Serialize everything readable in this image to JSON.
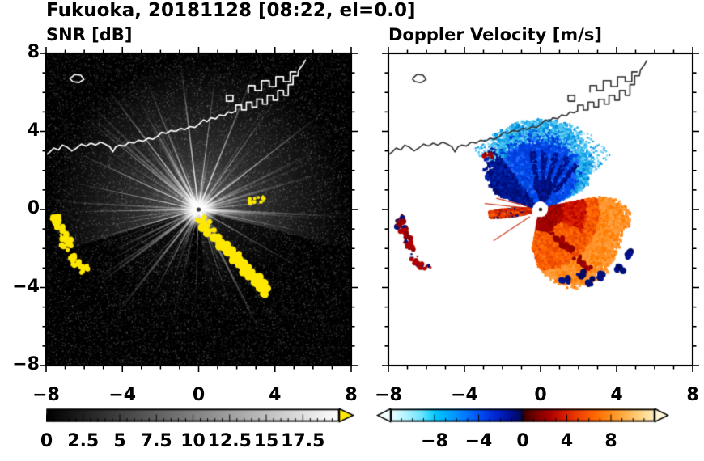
{
  "title": "Fukuoka, 20181128 [08:22, el=0.0]",
  "panels": {
    "snr": {
      "title": "SNR [dB]"
    },
    "doppler": {
      "title": "Doppler Velocity [m/s]"
    }
  },
  "axes": {
    "xlim": [
      -8,
      8
    ],
    "ylim": [
      -8,
      8
    ],
    "major_ticks": [
      -8,
      -4,
      0,
      4,
      8
    ],
    "minor_step": 1,
    "xtick_labels": [
      "−8",
      "−4",
      "0",
      "4",
      "8"
    ],
    "ytick_labels": [
      "8",
      "4",
      "0",
      "−4",
      "−8"
    ]
  },
  "colorbars": {
    "snr": {
      "range": [
        0,
        20
      ],
      "tick_values": [
        0,
        2.5,
        5,
        7.5,
        10,
        12.5,
        15,
        17.5
      ],
      "tick_labels": [
        "0",
        "2.5",
        "5",
        "7.5",
        "10",
        "12.5",
        "15",
        "17.5"
      ],
      "minor_step": 0.5,
      "start_color": "#000000",
      "end_color": "#ffffff",
      "over_arrow_color": "#ffe800"
    },
    "doppler": {
      "range": [
        -12,
        12
      ],
      "tick_values": [
        -8,
        -4,
        0,
        4,
        8
      ],
      "tick_labels": [
        "−8",
        "−4",
        "0",
        "4",
        "8"
      ],
      "minor_step": 1,
      "under_arrow_color": "#f2ffff",
      "over_arrow_color": "#fff6d8",
      "stops": [
        [
          0,
          "#eaffff"
        ],
        [
          0.06,
          "#b0f4ff"
        ],
        [
          0.12,
          "#66e4ff"
        ],
        [
          0.17,
          "#00c8ff"
        ],
        [
          0.23,
          "#00a0ff"
        ],
        [
          0.29,
          "#0074ff"
        ],
        [
          0.35,
          "#0044ee"
        ],
        [
          0.41,
          "#0020c8"
        ],
        [
          0.46,
          "#000e8e"
        ],
        [
          0.495,
          "#000a50"
        ],
        [
          0.505,
          "#3c0000"
        ],
        [
          0.55,
          "#780000"
        ],
        [
          0.6,
          "#a80000"
        ],
        [
          0.65,
          "#d01800"
        ],
        [
          0.71,
          "#f04000"
        ],
        [
          0.77,
          "#ff6600"
        ],
        [
          0.83,
          "#ff8c1a"
        ],
        [
          0.89,
          "#ffb24d"
        ],
        [
          0.95,
          "#ffd688"
        ],
        [
          1,
          "#ffeec0"
        ]
      ]
    }
  },
  "chart_data": [
    {
      "type": "heatmap",
      "panel": "left",
      "title": "SNR [dB]",
      "xlim": [
        -8,
        8
      ],
      "ylim": [
        -8,
        8
      ],
      "colorbar_range": [
        0,
        20
      ],
      "colorbar_ticks": [
        0,
        2.5,
        5,
        7.5,
        10,
        12.5,
        15,
        17.5
      ],
      "radar_center": [
        0,
        0
      ],
      "features": {
        "background": "dark receiver-noise speckle over full square",
        "interference_spokes": "bright white radial rays from radar center, densest over northern half",
        "over_range_clutter_color": "#ffe800",
        "clutter": "yellow (>20 dB) ground-clutter arcs southeast of radar and near west edge"
      }
    },
    {
      "type": "heatmap",
      "panel": "right",
      "title": "Doppler Velocity [m/s]",
      "xlim": [
        -8,
        8
      ],
      "ylim": [
        -8,
        8
      ],
      "colorbar_range": [
        -12,
        12
      ],
      "colorbar_ticks": [
        -8,
        -4,
        0,
        4,
        8
      ],
      "radar_center": [
        0,
        0
      ],
      "features": {
        "negative_velocity_lobe": "blue fan north of radar, azimuths ~24-162 deg, radius up to ~4.4",
        "positive_velocity_lobe": "red-orange fan east through south of radar, radius up to ~4.6",
        "west_inbound_wedge": "thin red wedge due west of radar, radius up to ~2.7",
        "alias_speckles": "dark navy spots along the far south-east edge of the orange lobe"
      }
    }
  ],
  "geography": {
    "coastlines": [
      [
        [
          -8,
          2.8
        ],
        [
          -7.8,
          2.95
        ],
        [
          -7.6,
          3.15
        ],
        [
          -7.35,
          3.05
        ],
        [
          -7.15,
          3.3
        ],
        [
          -6.9,
          3.2
        ],
        [
          -6.65,
          3.0
        ],
        [
          -6.4,
          3.15
        ],
        [
          -6.15,
          3.35
        ],
        [
          -5.9,
          3.25
        ],
        [
          -5.65,
          3.4
        ],
        [
          -5.4,
          3.3
        ],
        [
          -5.15,
          3.45
        ],
        [
          -4.9,
          3.35
        ],
        [
          -4.65,
          3.2
        ],
        [
          -4.5,
          2.95
        ],
        [
          -4.35,
          3.2
        ],
        [
          -4.15,
          3.3
        ],
        [
          -3.9,
          3.25
        ],
        [
          -3.65,
          3.45
        ],
        [
          -3.4,
          3.4
        ],
        [
          -3.15,
          3.55
        ],
        [
          -2.9,
          3.5
        ],
        [
          -2.65,
          3.65
        ],
        [
          -2.4,
          3.6
        ],
        [
          -2.15,
          3.75
        ],
        [
          -1.95,
          3.95
        ],
        [
          -1.7,
          3.9
        ],
        [
          -1.45,
          4.05
        ],
        [
          -1.2,
          4.0
        ],
        [
          -0.95,
          4.15
        ],
        [
          -0.7,
          4.1
        ],
        [
          -0.45,
          4.25
        ],
        [
          -0.2,
          4.2
        ],
        [
          0.05,
          4.4
        ],
        [
          0.25,
          4.6
        ],
        [
          0.45,
          4.5
        ],
        [
          0.65,
          4.7
        ],
        [
          0.9,
          4.65
        ],
        [
          1.1,
          4.85
        ],
        [
          1.35,
          4.8
        ],
        [
          1.55,
          5.0
        ],
        [
          1.75,
          4.95
        ],
        [
          1.95,
          5.05
        ],
        [
          1.95,
          5.35
        ],
        [
          2.25,
          5.35
        ],
        [
          2.25,
          5.1
        ],
        [
          2.5,
          5.1
        ],
        [
          2.5,
          5.5
        ],
        [
          2.8,
          5.5
        ],
        [
          2.8,
          5.25
        ],
        [
          3.05,
          5.25
        ],
        [
          3.05,
          5.65
        ],
        [
          3.35,
          5.65
        ],
        [
          3.35,
          5.4
        ],
        [
          3.6,
          5.4
        ],
        [
          3.6,
          5.85
        ],
        [
          3.9,
          5.85
        ],
        [
          3.9,
          5.6
        ],
        [
          4.15,
          5.6
        ],
        [
          4.15,
          6.1
        ],
        [
          4.45,
          6.1
        ],
        [
          4.45,
          5.85
        ],
        [
          4.7,
          5.85
        ],
        [
          4.7,
          6.4
        ],
        [
          4.95,
          6.4
        ],
        [
          4.95,
          6.85
        ],
        [
          5.2,
          6.85
        ],
        [
          5.25,
          7.15
        ],
        [
          5.45,
          7.4
        ],
        [
          5.6,
          7.65
        ]
      ],
      [
        [
          -6.75,
          6.7
        ],
        [
          -6.5,
          6.92
        ],
        [
          -6.18,
          6.88
        ],
        [
          -6.02,
          6.66
        ],
        [
          -6.28,
          6.5
        ],
        [
          -6.6,
          6.55
        ],
        [
          -6.75,
          6.7
        ]
      ],
      [
        [
          2.6,
          6.0
        ],
        [
          2.6,
          6.35
        ],
        [
          2.95,
          6.35
        ],
        [
          2.95,
          6.1
        ],
        [
          3.3,
          6.1
        ],
        [
          3.3,
          6.6
        ],
        [
          3.7,
          6.6
        ],
        [
          3.7,
          6.3
        ],
        [
          4.05,
          6.3
        ],
        [
          4.05,
          6.8
        ],
        [
          4.45,
          6.8
        ],
        [
          4.45,
          6.55
        ],
        [
          4.8,
          6.55
        ],
        [
          4.8,
          7.05
        ],
        [
          5.1,
          7.05
        ]
      ],
      [
        [
          1.45,
          5.55
        ],
        [
          1.45,
          5.85
        ],
        [
          1.8,
          5.85
        ],
        [
          1.8,
          5.55
        ],
        [
          1.45,
          5.55
        ]
      ]
    ]
  },
  "clutter_arcs": {
    "west_arc_1": [
      [
        -7.45,
        -0.45
      ],
      [
        -7.35,
        -0.75
      ],
      [
        -7.2,
        -1.05
      ],
      [
        -7.05,
        -1.35
      ],
      [
        -6.95,
        -1.65
      ],
      [
        -6.9,
        -1.9
      ]
    ],
    "west_arc_2": [
      [
        -6.65,
        -2.45
      ],
      [
        -6.45,
        -2.7
      ],
      [
        -6.2,
        -2.95
      ],
      [
        -6.0,
        -3.05
      ]
    ],
    "south_arc": [
      [
        0.25,
        -0.85
      ],
      [
        0.6,
        -1.15
      ],
      [
        0.95,
        -1.5
      ],
      [
        1.3,
        -1.85
      ],
      [
        1.6,
        -2.1
      ],
      [
        1.9,
        -2.45
      ],
      [
        2.2,
        -2.75
      ],
      [
        2.5,
        -3.05
      ],
      [
        2.8,
        -3.35
      ],
      [
        3.05,
        -3.65
      ],
      [
        3.3,
        -3.95
      ],
      [
        3.5,
        -4.2
      ]
    ],
    "near_center": [
      [
        0.1,
        -0.55
      ],
      [
        0.45,
        -0.75
      ]
    ],
    "east_dots": [
      [
        2.85,
        0.45
      ],
      [
        3.25,
        0.5
      ]
    ]
  },
  "doppler_features": {
    "alias_spots": [
      [
        2.1,
        -3.3
      ],
      [
        2.7,
        -3.7
      ],
      [
        3.2,
        -3.4
      ],
      [
        4.2,
        -3.0
      ],
      [
        4.6,
        -2.3
      ],
      [
        1.3,
        -3.6
      ]
    ],
    "spoke_angles_deg": [
      166,
      174,
      181,
      191,
      213
    ],
    "red_dash_on_blue_edge": [
      [
        -2.9,
        2.65
      ],
      [
        -2.75,
        2.85
      ]
    ]
  }
}
